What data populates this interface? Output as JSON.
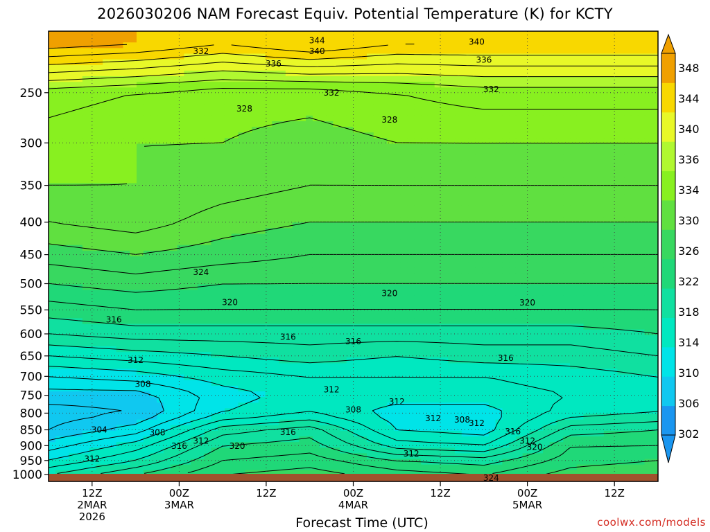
{
  "chart_data": {
    "type": "heatmap",
    "title": "2026030206 NAM Forecast Equiv. Potential Temperature (K) for KCTY",
    "xlabel": "Forecast Time (UTC)",
    "ylabel": "",
    "y_ticks": [
      250,
      300,
      350,
      400,
      450,
      500,
      550,
      600,
      650,
      700,
      750,
      800,
      850,
      900,
      950,
      1000
    ],
    "y_scale": "log",
    "y_range": [
      200,
      1025
    ],
    "y_inverted": true,
    "x_range_hours": [
      0,
      84
    ],
    "x_ticks": [
      {
        "hour": 6,
        "lines": [
          "12Z",
          "2MAR",
          "2026"
        ]
      },
      {
        "hour": 18,
        "lines": [
          "00Z",
          "3MAR"
        ]
      },
      {
        "hour": 30,
        "lines": [
          "12Z"
        ]
      },
      {
        "hour": 42,
        "lines": [
          "00Z",
          "4MAR"
        ]
      },
      {
        "hour": 54,
        "lines": [
          "12Z"
        ]
      },
      {
        "hour": 66,
        "lines": [
          "00Z",
          "5MAR"
        ]
      },
      {
        "hour": 78,
        "lines": [
          "12Z"
        ]
      }
    ],
    "colorbar": {
      "levels": [
        302,
        306,
        310,
        314,
        318,
        322,
        326,
        330,
        334,
        336,
        340,
        344,
        348
      ],
      "colors": [
        "#1a96f0",
        "#10c8f0",
        "#00e4e8",
        "#00e8c0",
        "#10e0a0",
        "#20d878",
        "#38d860",
        "#60e040",
        "#88f020",
        "#b0f830",
        "#e8f828",
        "#f8d800",
        "#f0a000"
      ]
    },
    "theta_e_profiles": [
      {
        "hour": 0,
        "pressure_hPa": [
          1000,
          950,
          900,
          850,
          800,
          750,
          700,
          650,
          600,
          550,
          500,
          450,
          400,
          350,
          300,
          250,
          210
        ],
        "theta_e_K": [
          314,
          310,
          307,
          304,
          303,
          305,
          308,
          312,
          316,
          319,
          322,
          325,
          328,
          330,
          331,
          333,
          345
        ]
      },
      {
        "hour": 12,
        "pressure_hPa": [
          1000,
          950,
          900,
          850,
          800,
          750,
          700,
          650,
          600,
          550,
          500,
          450,
          400,
          350,
          300,
          250,
          210
        ],
        "theta_e_K": [
          318,
          314,
          311,
          307,
          304,
          305,
          309,
          313,
          317,
          320,
          323,
          326,
          329,
          330,
          330,
          332,
          344
        ]
      },
      {
        "hour": 24,
        "pressure_hPa": [
          1000,
          950,
          900,
          850,
          800,
          750,
          700,
          650,
          600,
          550,
          500,
          450,
          400,
          350,
          300,
          250,
          210
        ],
        "theta_e_K": [
          322,
          320,
          318,
          315,
          310,
          309,
          311,
          314,
          317,
          320,
          322,
          325,
          327,
          329,
          330,
          331,
          342
        ]
      },
      {
        "hour": 36,
        "pressure_hPa": [
          1000,
          950,
          900,
          850,
          800,
          750,
          700,
          650,
          600,
          550,
          500,
          450,
          400,
          350,
          300,
          250,
          210
        ],
        "theta_e_K": [
          323,
          321,
          319,
          317,
          312,
          311,
          312,
          315,
          317,
          320,
          322,
          324,
          326,
          328,
          329,
          331,
          344
        ]
      },
      {
        "hour": 48,
        "pressure_hPa": [
          1000,
          950,
          900,
          850,
          800,
          750,
          700,
          650,
          600,
          550,
          500,
          450,
          400,
          350,
          300,
          250,
          210
        ],
        "theta_e_K": [
          321,
          318,
          313,
          310,
          309,
          311,
          312,
          314,
          317,
          320,
          322,
          324,
          326,
          328,
          330,
          332,
          342
        ]
      },
      {
        "hour": 60,
        "pressure_hPa": [
          1000,
          950,
          900,
          850,
          800,
          750,
          700,
          650,
          600,
          550,
          500,
          450,
          400,
          350,
          300,
          250,
          210
        ],
        "theta_e_K": [
          320,
          317,
          312,
          309,
          309,
          311,
          312,
          315,
          317,
          320,
          322,
          324,
          326,
          328,
          330,
          333,
          342
        ]
      },
      {
        "hour": 72,
        "pressure_hPa": [
          1000,
          950,
          900,
          850,
          800,
          750,
          700,
          650,
          600,
          550,
          500,
          450,
          400,
          350,
          300,
          250,
          210
        ],
        "theta_e_K": [
          323,
          321,
          320,
          317,
          313,
          312,
          313,
          315,
          317,
          320,
          322,
          324,
          326,
          328,
          330,
          333,
          342
        ]
      },
      {
        "hour": 84,
        "pressure_hPa": [
          1000,
          950,
          900,
          850,
          800,
          750,
          700,
          650,
          600,
          550,
          500,
          450,
          400,
          350,
          300,
          250,
          210
        ],
        "theta_e_K": [
          324,
          322,
          320,
          318,
          314,
          313,
          314,
          316,
          318,
          320,
          322,
          324,
          326,
          328,
          330,
          333,
          342
        ]
      }
    ],
    "contour_labels": [
      {
        "text": "344",
        "hour": 37,
        "p": 207
      },
      {
        "text": "340",
        "hour": 37,
        "p": 215
      },
      {
        "text": "332",
        "hour": 21,
        "p": 215
      },
      {
        "text": "336",
        "hour": 31,
        "p": 225
      },
      {
        "text": "340",
        "hour": 59,
        "p": 208
      },
      {
        "text": "336",
        "hour": 60,
        "p": 222
      },
      {
        "text": "332",
        "hour": 39,
        "p": 250
      },
      {
        "text": "332",
        "hour": 61,
        "p": 247
      },
      {
        "text": "328",
        "hour": 27,
        "p": 265
      },
      {
        "text": "328",
        "hour": 47,
        "p": 276
      },
      {
        "text": "324",
        "hour": 21,
        "p": 480
      },
      {
        "text": "320",
        "hour": 25,
        "p": 535
      },
      {
        "text": "320",
        "hour": 47,
        "p": 518
      },
      {
        "text": "320",
        "hour": 66,
        "p": 536
      },
      {
        "text": "316",
        "hour": 9,
        "p": 570
      },
      {
        "text": "316",
        "hour": 33,
        "p": 607
      },
      {
        "text": "316",
        "hour": 42,
        "p": 617
      },
      {
        "text": "316",
        "hour": 63,
        "p": 655
      },
      {
        "text": "312",
        "hour": 12,
        "p": 660
      },
      {
        "text": "312",
        "hour": 39,
        "p": 735
      },
      {
        "text": "312",
        "hour": 48,
        "p": 768
      },
      {
        "text": "312",
        "hour": 53,
        "p": 815
      },
      {
        "text": "312",
        "hour": 59,
        "p": 830
      },
      {
        "text": "312",
        "hour": 66,
        "p": 885
      },
      {
        "text": "312",
        "hour": 6,
        "p": 945
      },
      {
        "text": "312",
        "hour": 21,
        "p": 885
      },
      {
        "text": "308",
        "hour": 13,
        "p": 720
      },
      {
        "text": "308",
        "hour": 42,
        "p": 790
      },
      {
        "text": "308",
        "hour": 57,
        "p": 820
      },
      {
        "text": "308",
        "hour": 15,
        "p": 858
      },
      {
        "text": "304",
        "hour": 7,
        "p": 850
      },
      {
        "text": "316",
        "hour": 18,
        "p": 902
      },
      {
        "text": "316",
        "hour": 33,
        "p": 857
      },
      {
        "text": "316",
        "hour": 64,
        "p": 855
      },
      {
        "text": "320",
        "hour": 26,
        "p": 902
      },
      {
        "text": "320",
        "hour": 67,
        "p": 905
      },
      {
        "text": "312",
        "hour": 50,
        "p": 927
      },
      {
        "text": "324",
        "hour": 61,
        "p": 1012
      }
    ]
  },
  "credit": "coolwx.com/models"
}
